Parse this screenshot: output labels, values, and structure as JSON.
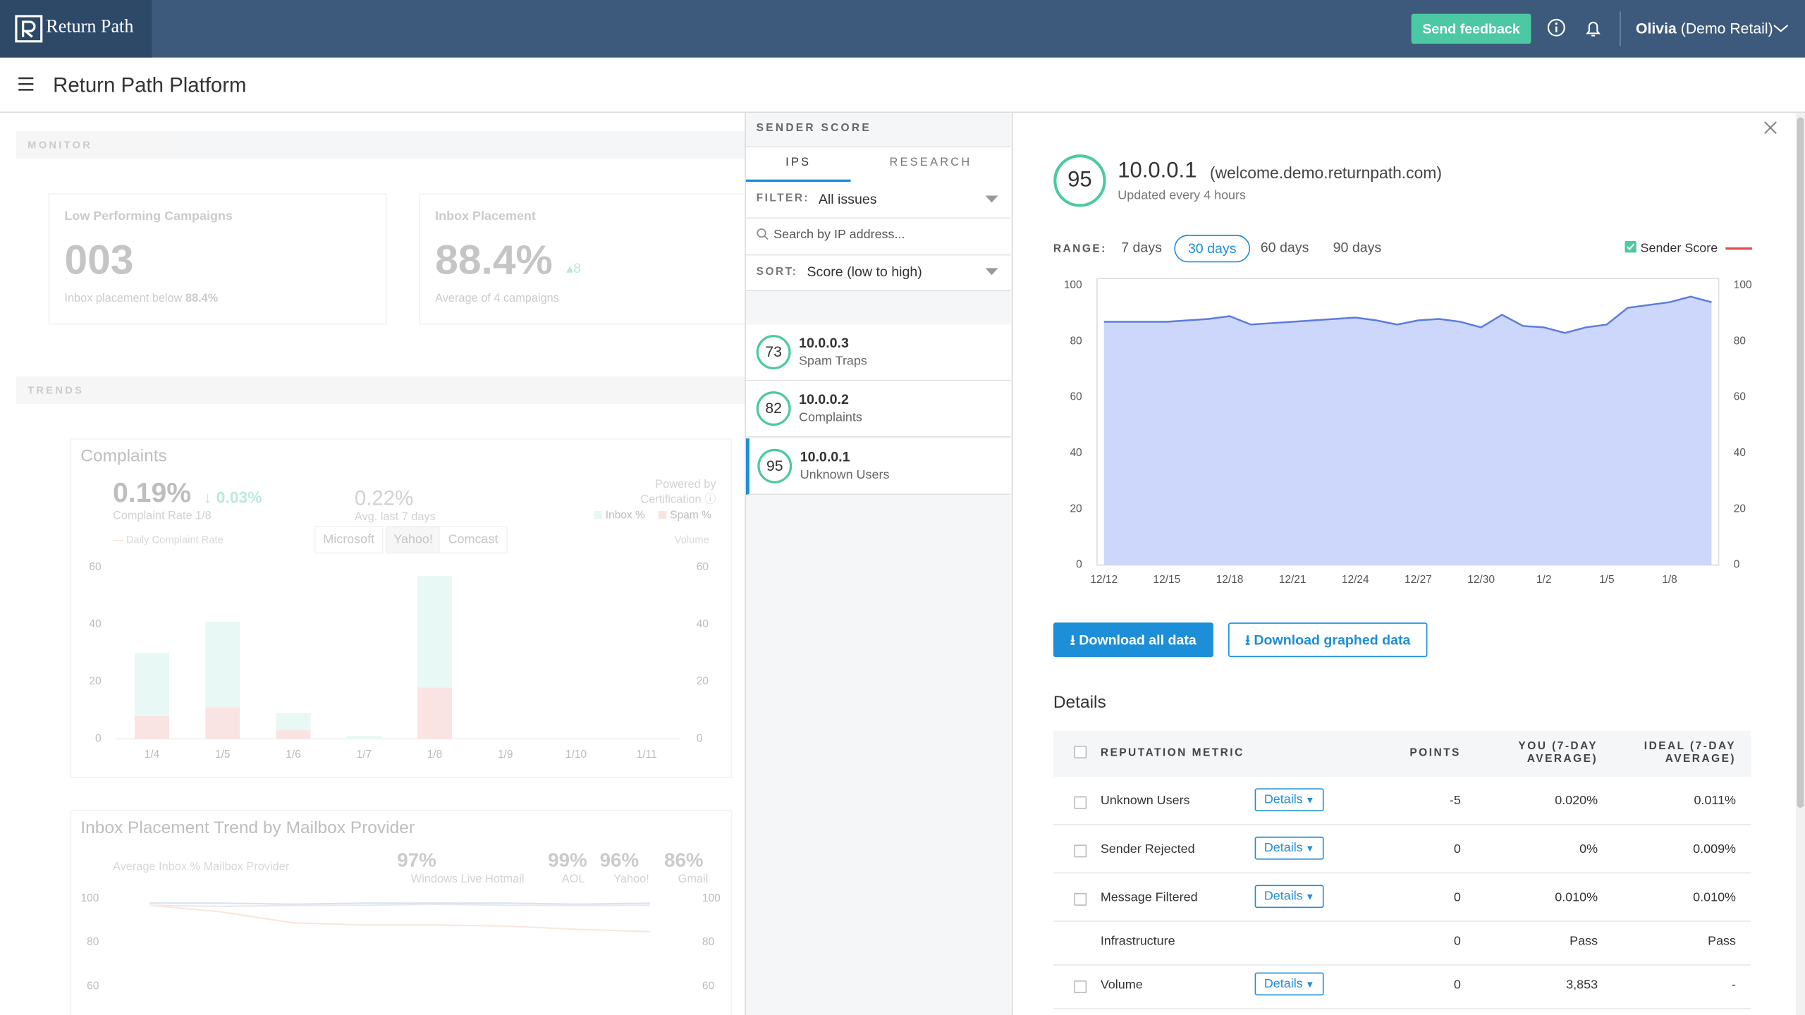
{
  "header": {
    "brand": "Return Path",
    "feedback_button": "Send feedback",
    "user": "Olivia",
    "account": "(Demo Retail)"
  },
  "page_title": "Return Path Platform",
  "monitor": {
    "label": "MONITOR",
    "cards": [
      {
        "title": "Low Performing Campaigns",
        "value": "003",
        "note": "Inbox placement below",
        "note_value": "88.4%"
      },
      {
        "title": "Inbox Placement",
        "value": "88.4%",
        "delta": "8",
        "note": "Average of 4 campaigns"
      }
    ]
  },
  "trends": {
    "label": "TRENDS"
  },
  "complaints": {
    "title": "Complaints",
    "rate": "0.19%",
    "change": "0.03%",
    "rate_label": "Complaint Rate 1/8",
    "average": "0.22%",
    "average_label": "Avg. last 7 days",
    "powered_by": "Powered by",
    "source": "Certification",
    "providers": [
      "Microsoft",
      "Yahoo!",
      "Comcast"
    ],
    "rate_legend": "Daily Complaint Rate",
    "volume_label": "Volume"
  },
  "inbox_trend": {
    "title": "Inbox Placement Trend by Mailbox Provider",
    "subtitle": "Average Inbox % Mailbox Provider",
    "providers": [
      {
        "value": "97%",
        "name": "Windows Live Hotmail"
      },
      {
        "value": "99%",
        "name": "AOL"
      },
      {
        "value": "96%",
        "name": "Yahoo!"
      },
      {
        "value": "86%",
        "name": "Gmail"
      }
    ]
  },
  "sender_score": {
    "label": "SENDER SCORE",
    "tabs": [
      "IPS",
      "RESEARCH"
    ],
    "filter_label": "FILTER:",
    "filter_value": "All issues",
    "search_placeholder": "Search by IP address...",
    "sort_label": "SORT:",
    "sort_value": "Score (low to high)",
    "ips": [
      {
        "score": 73,
        "ip": "10.0.0.3",
        "issue": "Spam Traps"
      },
      {
        "score": 82,
        "ip": "10.0.0.2",
        "issue": "Complaints"
      },
      {
        "score": 95,
        "ip": "10.0.0.1",
        "issue": "Unknown Users"
      }
    ]
  },
  "detail": {
    "score": 95,
    "ip": "10.0.0.1",
    "domain": "(welcome.demo.returnpath.com)",
    "updated": "Updated every 4 hours",
    "range_label": "RANGE:",
    "ranges": [
      "7 days",
      "30 days",
      "60 days",
      "90 days"
    ],
    "download_all": "Download all data",
    "download_graphed": "Download graphed data",
    "details_title": "Details",
    "details_button": "Details",
    "columns": [
      "REPUTATION METRIC",
      "POINTS",
      "YOU (7-DAY AVERAGE)",
      "IDEAL (7-DAY AVERAGE)"
    ],
    "rows": [
      {
        "metric": "Unknown Users",
        "details": true,
        "points": -5,
        "you": "0.020%",
        "ideal": "0.011%"
      },
      {
        "metric": "Sender Rejected",
        "details": true,
        "points": 0,
        "you": "0%",
        "ideal": "0.009%"
      },
      {
        "metric": "Message Filtered",
        "details": true,
        "points": 0,
        "you": "0.010%",
        "ideal": "0.010%"
      },
      {
        "metric": "Infrastructure",
        "details": false,
        "points": 0,
        "you": "Pass",
        "ideal": "Pass"
      },
      {
        "metric": "Volume",
        "details": true,
        "points": 0,
        "you": "3,853",
        "ideal": "-"
      }
    ]
  },
  "chart_data": [
    {
      "type": "bar",
      "stacked": true,
      "categories": [
        "1/4",
        "1/5",
        "1/6",
        "1/7",
        "1/8",
        "1/9",
        "1/10",
        "1/11"
      ],
      "series": [
        {
          "name": "Inbox %",
          "color": "#c5eee4",
          "values": [
            22,
            30,
            6,
            1,
            39,
            0,
            0,
            0
          ]
        },
        {
          "name": "Spam %",
          "color": "#f2b8b8",
          "values": [
            8,
            11,
            3,
            0,
            18,
            0,
            0,
            0
          ]
        }
      ],
      "ylim": [
        0,
        60
      ],
      "yticks": [
        0,
        20,
        40,
        60
      ],
      "y2lim": [
        0,
        60
      ],
      "y2ticks": [
        0,
        20,
        40,
        60
      ]
    },
    {
      "type": "line",
      "categories": [
        null,
        null,
        null,
        null,
        null,
        null,
        null,
        null
      ],
      "series": [
        {
          "color": "#9fb4e6",
          "values": [
            98,
            98,
            97.5,
            98,
            98,
            98,
            97.5,
            98
          ]
        },
        {
          "color": "#c9c9c9",
          "values": [
            97,
            96.5,
            97,
            97,
            97.5,
            97,
            97,
            97
          ]
        },
        {
          "color": "#f2c2a8",
          "values": [
            97,
            94,
            89,
            88,
            88,
            87.5,
            86,
            85
          ]
        }
      ],
      "ylim": [
        60,
        100
      ],
      "yticks": [
        60,
        80,
        100
      ],
      "y2lim": [
        60,
        100
      ],
      "y2ticks": [
        60,
        80,
        100
      ]
    },
    {
      "type": "area",
      "categories": [
        "12/12",
        null,
        null,
        "12/15",
        null,
        null,
        "12/18",
        null,
        null,
        "12/21",
        null,
        null,
        "12/24",
        null,
        null,
        "12/27",
        null,
        null,
        "12/30",
        null,
        null,
        "1/2",
        null,
        null,
        "1/5",
        null,
        null,
        "1/8",
        null,
        null
      ],
      "series": [
        {
          "name": "Sender Score",
          "color": "#5b7be0",
          "values": [
            87,
            87,
            87,
            87,
            87.5,
            88,
            89,
            86,
            86.5,
            87,
            87.5,
            88,
            88.5,
            87.5,
            86,
            87.5,
            88,
            87,
            85,
            89.5,
            85.5,
            85,
            83,
            85,
            86,
            92,
            93,
            94,
            96,
            94
          ]
        }
      ],
      "legend_color": "#e24b4b",
      "ylim": [
        0,
        100
      ],
      "yticks": [
        0,
        20,
        40,
        60,
        80,
        100
      ],
      "y2lim": [
        0,
        100
      ],
      "y2ticks": [
        0,
        20,
        40,
        60,
        80,
        100
      ]
    }
  ]
}
